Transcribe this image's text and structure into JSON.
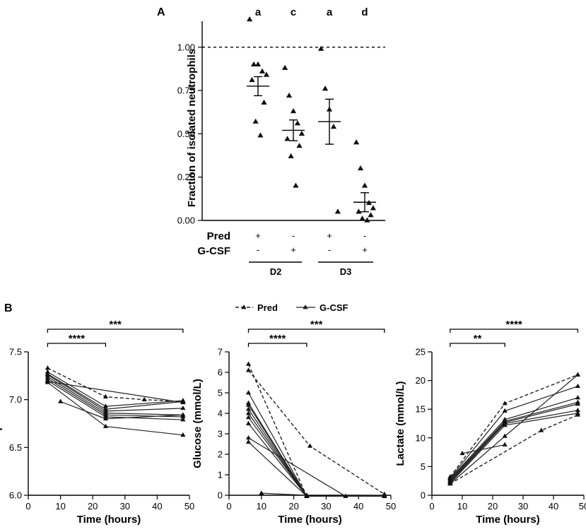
{
  "panel_labels": {
    "a": "A",
    "b": "B"
  },
  "chart_data": [
    {
      "id": "neutrophil_fraction",
      "type": "scatter",
      "ylabel": "Fraction of isolated neutrophils",
      "ylim": [
        0,
        1.15
      ],
      "yticks": [
        0.0,
        0.25,
        0.5,
        0.75,
        1.0
      ],
      "ytick_labels": [
        "0.00",
        "0.25",
        "0.50",
        "0.75",
        "1.00"
      ],
      "reference_line": 1.0,
      "row_labels": {
        "pred": "Pred",
        "gcsf": "G-CSF"
      },
      "groups": [
        {
          "pred": "+",
          "gcsf": "-",
          "letter": "a",
          "points": [
            1.16,
            0.9,
            0.9,
            0.86,
            0.84,
            0.81,
            0.68,
            0.57,
            0.49
          ],
          "mean": 0.775,
          "sem_low": 0.72,
          "sem_high": 0.83
        },
        {
          "pred": "-",
          "gcsf": "+",
          "letter": "c",
          "points": [
            0.88,
            0.72,
            0.63,
            0.56,
            0.5,
            0.47,
            0.43,
            0.37,
            0.2
          ],
          "mean": 0.52,
          "sem_low": 0.46,
          "sem_high": 0.58
        },
        {
          "pred": "+",
          "gcsf": "-",
          "letter": "a",
          "points": [
            0.99,
            0.76,
            0.64,
            0.54,
            0.05
          ],
          "mean": 0.57,
          "sem_low": 0.44,
          "sem_high": 0.7
        },
        {
          "pred": "-",
          "gcsf": "+",
          "letter": "d",
          "points": [
            0.45,
            0.3,
            0.2,
            0.1,
            0.07,
            0.05,
            0.03,
            0.01,
            0.0
          ],
          "mean": 0.105,
          "sem_low": 0.05,
          "sem_high": 0.16
        }
      ],
      "day_labels": [
        "D2",
        "D3"
      ]
    },
    {
      "id": "ph",
      "type": "line",
      "xlabel": "Time (hours)",
      "ylabel": "pH",
      "xlim": [
        0,
        50
      ],
      "ylim": [
        6.0,
        7.5
      ],
      "xticks": [
        0,
        10,
        20,
        30,
        40,
        50
      ],
      "yticks": [
        6.0,
        6.5,
        7.0,
        7.5
      ],
      "ytick_labels": [
        "6.0",
        "6.5",
        "7.0",
        "7.5"
      ],
      "significance": [
        {
          "from": 6,
          "to": 24,
          "label": "****"
        },
        {
          "from": 6,
          "to": 48,
          "label": "***"
        }
      ],
      "series": [
        {
          "name": "Pred",
          "style": "dashed",
          "x": [
            6,
            24,
            36,
            48
          ],
          "y": [
            7.33,
            7.03,
            7.0,
            6.98
          ]
        },
        {
          "name": "G-CSF",
          "style": "solid",
          "x": [
            6,
            24,
            48
          ],
          "y": [
            7.29,
            6.93,
            6.99
          ]
        },
        {
          "name": "G-CSF",
          "style": "solid",
          "x": [
            6,
            24,
            48
          ],
          "y": [
            7.27,
            6.9,
            6.98
          ]
        },
        {
          "name": "G-CSF",
          "style": "solid",
          "x": [
            6,
            24,
            48
          ],
          "y": [
            7.26,
            6.88,
            6.91
          ]
        },
        {
          "name": "G-CSF",
          "style": "solid",
          "x": [
            6,
            24,
            48
          ],
          "y": [
            7.24,
            6.86,
            6.84
          ]
        },
        {
          "name": "G-CSF",
          "style": "solid",
          "x": [
            6,
            24,
            48
          ],
          "y": [
            7.22,
            6.84,
            6.82
          ]
        },
        {
          "name": "G-CSF",
          "style": "solid",
          "x": [
            6,
            24,
            48
          ],
          "y": [
            7.2,
            6.82,
            6.79
          ]
        },
        {
          "name": "G-CSF",
          "style": "solid",
          "x": [
            6,
            24,
            48
          ],
          "y": [
            7.18,
            6.72,
            6.63
          ]
        },
        {
          "name": "G-CSF",
          "style": "solid",
          "x": [
            6,
            48
          ],
          "y": [
            7.19,
            6.97
          ]
        },
        {
          "name": "Pred",
          "style": "solid",
          "x": [
            10,
            24,
            48
          ],
          "y": [
            6.98,
            6.8,
            6.84
          ]
        }
      ]
    },
    {
      "id": "glucose",
      "type": "line",
      "xlabel": "Time (hours)",
      "ylabel": "Glucose (mmol/L)",
      "xlim": [
        0,
        50
      ],
      "ylim": [
        0,
        7
      ],
      "xticks": [
        0,
        10,
        20,
        30,
        40,
        50
      ],
      "yticks": [
        0,
        1,
        2,
        3,
        4,
        5,
        6,
        7
      ],
      "ytick_labels": [
        "0",
        "1",
        "2",
        "3",
        "4",
        "5",
        "6",
        "7"
      ],
      "legend": {
        "entries": [
          {
            "label": "Pred",
            "style": "dashed"
          },
          {
            "label": "G-CSF",
            "style": "solid"
          }
        ]
      },
      "significance": [
        {
          "from": 6,
          "to": 24,
          "label": "****"
        },
        {
          "from": 6,
          "to": 48,
          "label": "***"
        }
      ],
      "series": [
        {
          "name": "Pred",
          "style": "dashed",
          "x": [
            6,
            24
          ],
          "y": [
            6.4,
            -0.05
          ]
        },
        {
          "name": "Pred",
          "style": "dashed",
          "x": [
            6,
            25,
            48
          ],
          "y": [
            6.1,
            2.4,
            0.05
          ]
        },
        {
          "name": "G-CSF",
          "style": "solid",
          "x": [
            6,
            24,
            48
          ],
          "y": [
            5.0,
            -0.05,
            0.0
          ]
        },
        {
          "name": "G-CSF",
          "style": "solid",
          "x": [
            6,
            24,
            48
          ],
          "y": [
            4.5,
            -0.05,
            -0.05
          ]
        },
        {
          "name": "G-CSF",
          "style": "solid",
          "x": [
            6,
            24,
            48
          ],
          "y": [
            4.4,
            -0.05,
            -0.05
          ]
        },
        {
          "name": "G-CSF",
          "style": "solid",
          "x": [
            6,
            24,
            48
          ],
          "y": [
            4.2,
            -0.05,
            -0.05
          ]
        },
        {
          "name": "G-CSF",
          "style": "solid",
          "x": [
            6,
            24,
            48
          ],
          "y": [
            4.0,
            -0.05,
            -0.05
          ]
        },
        {
          "name": "G-CSF",
          "style": "solid",
          "x": [
            6,
            24,
            48
          ],
          "y": [
            3.8,
            -0.05,
            -0.05
          ]
        },
        {
          "name": "G-CSF",
          "style": "solid",
          "x": [
            6,
            24,
            36
          ],
          "y": [
            3.5,
            -0.05,
            -0.05
          ]
        },
        {
          "name": "G-CSF",
          "style": "solid",
          "x": [
            6,
            36
          ],
          "y": [
            2.8,
            -0.05
          ]
        },
        {
          "name": "G-CSF",
          "style": "solid",
          "x": [
            6,
            24
          ],
          "y": [
            2.6,
            -0.05
          ]
        },
        {
          "name": "Pred",
          "style": "solid",
          "x": [
            10,
            24
          ],
          "y": [
            0.1,
            0.0
          ]
        }
      ]
    },
    {
      "id": "lactate",
      "type": "line",
      "xlabel": "Time (hours)",
      "ylabel": "Lactate (mmol/L)",
      "xlim": [
        0,
        50
      ],
      "ylim": [
        0,
        25
      ],
      "xticks": [
        0,
        10,
        20,
        30,
        40,
        50
      ],
      "yticks": [
        0,
        5,
        10,
        15,
        20,
        25
      ],
      "ytick_labels": [
        "0",
        "5",
        "10",
        "15",
        "20",
        "25"
      ],
      "significance": [
        {
          "from": 6,
          "to": 24,
          "label": "**"
        },
        {
          "from": 6,
          "to": 48,
          "label": "****"
        }
      ],
      "series": [
        {
          "name": "Pred",
          "style": "dashed",
          "x": [
            6,
            24,
            48
          ],
          "y": [
            3.2,
            16.0,
            21.0
          ]
        },
        {
          "name": "Pred",
          "style": "dashed",
          "x": [
            6,
            36,
            48
          ],
          "y": [
            2.0,
            11.3,
            14.0
          ]
        },
        {
          "name": "G-CSF",
          "style": "solid",
          "x": [
            6,
            24,
            48
          ],
          "y": [
            3.0,
            14.7,
            19.0
          ]
        },
        {
          "name": "G-CSF",
          "style": "solid",
          "x": [
            6,
            24,
            48
          ],
          "y": [
            2.9,
            13.2,
            17.0
          ]
        },
        {
          "name": "G-CSF",
          "style": "solid",
          "x": [
            6,
            24,
            48
          ],
          "y": [
            2.7,
            12.9,
            16.2
          ]
        },
        {
          "name": "G-CSF",
          "style": "solid",
          "x": [
            6,
            24,
            48
          ],
          "y": [
            2.5,
            12.7,
            15.9
          ]
        },
        {
          "name": "G-CSF",
          "style": "solid",
          "x": [
            6,
            24,
            48
          ],
          "y": [
            2.3,
            12.5,
            14.8
          ]
        },
        {
          "name": "G-CSF",
          "style": "solid",
          "x": [
            6,
            24,
            48
          ],
          "y": [
            2.1,
            12.2,
            14.3
          ]
        },
        {
          "name": "G-CSF",
          "style": "solid",
          "x": [
            6,
            24,
            48
          ],
          "y": [
            2.0,
            10.3,
            21.0
          ]
        },
        {
          "name": "Pred",
          "style": "solid",
          "x": [
            10,
            24
          ],
          "y": [
            7.3,
            8.8
          ]
        }
      ]
    }
  ]
}
